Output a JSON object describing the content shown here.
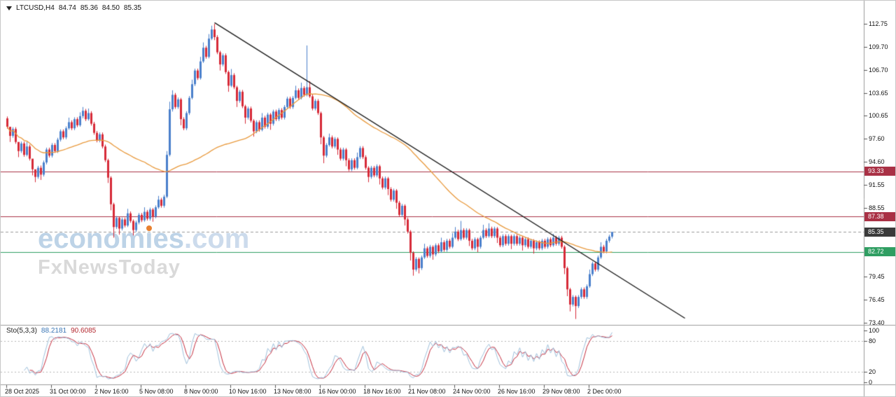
{
  "header": {
    "symbol": "LTCUSD,H4",
    "open": "84.74",
    "high": "85.36",
    "low": "84.50",
    "close": "85.35"
  },
  "watermark": {
    "brand_pre": "econom",
    "brand_i": "i",
    "brand_post": "es",
    "brand_suffix": ".com",
    "subbrand": "FxNewsToday"
  },
  "indicator_label": {
    "name": "Sto(5,3,3)",
    "k": "88.2181",
    "d": "90.6085"
  },
  "colors": {
    "up": "#4a7fcb",
    "down": "#d62937",
    "axis_text": "#111111",
    "separator": "#9b9b9b",
    "background": "#ffffff"
  },
  "chart_data": {
    "type": "candlestick",
    "symbol": "LTCUSD",
    "timeframe": "H4",
    "title": "LTCUSD,H4",
    "ylim": [
      73.4,
      112.75
    ],
    "y_axis": {
      "ticks": [
        112.75,
        109.7,
        106.7,
        103.65,
        100.65,
        97.6,
        94.6,
        91.55,
        88.55,
        79.45,
        76.45,
        73.4
      ],
      "badges": [
        {
          "text": "93.33",
          "price": 93.33,
          "bg": "#a93145"
        },
        {
          "text": "87.38",
          "price": 87.38,
          "bg": "#a93145"
        },
        {
          "text": "85.35",
          "price": 85.35,
          "bg": "#3a3a3a"
        },
        {
          "text": "82.72",
          "price": 82.72,
          "bg": "#2f9e62"
        }
      ]
    },
    "x_axis": {
      "labels": [
        {
          "text": "28 Oct 2025",
          "i": 0
        },
        {
          "text": "31 Oct 00:00",
          "i": 16
        },
        {
          "text": "2 Nov 16:00",
          "i": 32
        },
        {
          "text": "5 Nov 08:00",
          "i": 48
        },
        {
          "text": "8 Nov 00:00",
          "i": 64
        },
        {
          "text": "10 Nov 16:00",
          "i": 80
        },
        {
          "text": "13 Nov 08:00",
          "i": 96
        },
        {
          "text": "16 Nov 00:00",
          "i": 112
        },
        {
          "text": "18 Nov 16:00",
          "i": 128
        },
        {
          "text": "21 Nov 08:00",
          "i": 144
        },
        {
          "text": "24 Nov 00:00",
          "i": 160
        },
        {
          "text": "26 Nov 16:00",
          "i": 176
        },
        {
          "text": "29 Nov 08:00",
          "i": 192
        },
        {
          "text": "2 Dec 00:00",
          "i": 208
        }
      ]
    },
    "candle_format": "[open, close] or [open, close, high, low]; missing wick = body +/- 0.25",
    "candles": [
      [
        100.3,
        99.2
      ],
      [
        99.2,
        98,
        98.4,
        97.2
      ],
      [
        98,
        98.9
      ],
      [
        98.9,
        97.2
      ],
      [
        97.2,
        96,
        96.4,
        95.2
      ],
      [
        96,
        97
      ],
      [
        97,
        95.5
      ],
      [
        95.5,
        96.6,
        97.2,
        95.3
      ],
      [
        96.6,
        95
      ],
      [
        95,
        93.6,
        93.9,
        92.8
      ],
      [
        93.6,
        92.6,
        93,
        91.9
      ],
      [
        92.6,
        93.8
      ],
      [
        93.8,
        92.9,
        94.1,
        92.2
      ],
      [
        92.9,
        94.5
      ],
      [
        94.5,
        96.2
      ],
      [
        96.2,
        95.4
      ],
      [
        95.4,
        96.8
      ],
      [
        96.8,
        96
      ],
      [
        96,
        97.5
      ],
      [
        97.5,
        98.6
      ],
      [
        98.6,
        97.8
      ],
      [
        97.8,
        99
      ],
      [
        99,
        99.8,
        100.4,
        98.8
      ],
      [
        99.8,
        99
      ],
      [
        99,
        100.2
      ],
      [
        100.2,
        99.4
      ],
      [
        99.4,
        100.6,
        101.1,
        99.2
      ],
      [
        100.6,
        101.3,
        101.8,
        100.3
      ],
      [
        101.3,
        100.2
      ],
      [
        100.2,
        101,
        101.6,
        100
      ],
      [
        101,
        99.6
      ],
      [
        99.6,
        98.4
      ],
      [
        98.4,
        97.4
      ],
      [
        97.4,
        98.2
      ],
      [
        98.2,
        96.6
      ],
      [
        96.6,
        94.8
      ],
      [
        94.8,
        92.5,
        95,
        91.8
      ],
      [
        92.5,
        89,
        92.7,
        88.2
      ],
      [
        89,
        86,
        89.2,
        84.6
      ],
      [
        86,
        87.2
      ],
      [
        87.2,
        85.8,
        87.4,
        85
      ],
      [
        85.8,
        87
      ],
      [
        87,
        86.2
      ],
      [
        86.2,
        87.8,
        88.4,
        86
      ],
      [
        87.8,
        86.8
      ],
      [
        86.8,
        85.6,
        87,
        84.9
      ],
      [
        85.6,
        86.6
      ],
      [
        86.6,
        87.6
      ],
      [
        87.6,
        86.9
      ],
      [
        86.9,
        88,
        88.6,
        86.7
      ],
      [
        88,
        87.1
      ],
      [
        87.1,
        88.3
      ],
      [
        88.3,
        87.4,
        88.5,
        86.7
      ],
      [
        87.4,
        88.6
      ],
      [
        88.6,
        89.6,
        90.1,
        88.4
      ],
      [
        89.6,
        88.8
      ],
      [
        88.8,
        90
      ],
      [
        90,
        95.5,
        96,
        89.8
      ],
      [
        95.5,
        101.5,
        102.5,
        95.3
      ],
      [
        101.5,
        103.4,
        104,
        101.2
      ],
      [
        103.4,
        101.8
      ],
      [
        101.8,
        102.8
      ],
      [
        102.8,
        100.2,
        103,
        99.4
      ],
      [
        100.2,
        99
      ],
      [
        99,
        101
      ],
      [
        101,
        103
      ],
      [
        103,
        104.8,
        105.4,
        102.8
      ],
      [
        104.8,
        106.6
      ],
      [
        106.6,
        105.6
      ],
      [
        105.6,
        107.8,
        108.4,
        105.4
      ],
      [
        107.8,
        109.6,
        110.3,
        107.6
      ],
      [
        109.6,
        108.4
      ],
      [
        108.4,
        110.8,
        111.4,
        108.2
      ],
      [
        110.8,
        112,
        112.5,
        110.6
      ],
      [
        112,
        111,
        112.75,
        110.6
      ],
      [
        111,
        109
      ],
      [
        109,
        107.4,
        109.2,
        106.6
      ],
      [
        107.4,
        108.6
      ],
      [
        108.6,
        106.4
      ],
      [
        106.4,
        104.6,
        106.6,
        103.8
      ],
      [
        104.6,
        106,
        106.8,
        104.4
      ],
      [
        106,
        104.4
      ],
      [
        104.4,
        102.6,
        104.6,
        101.8
      ],
      [
        102.6,
        103.8
      ],
      [
        103.8,
        101.9
      ],
      [
        101.9,
        100.4,
        102.1,
        99.6
      ],
      [
        100.4,
        101.6
      ],
      [
        101.6,
        100
      ],
      [
        100,
        98.6,
        100.2,
        97.9
      ],
      [
        98.6,
        99.8
      ],
      [
        99.8,
        98.8
      ],
      [
        98.8,
        100.4,
        101,
        98.6
      ],
      [
        100.4,
        99.2
      ],
      [
        99.2,
        100.8
      ],
      [
        100.8,
        99.6,
        101,
        98.8
      ],
      [
        99.6,
        101.2
      ],
      [
        101.2,
        100.2
      ],
      [
        100.2,
        101.4
      ],
      [
        101.4,
        100.4
      ],
      [
        100.4,
        101.8
      ],
      [
        101.8,
        102.9
      ],
      [
        102.9,
        101.8
      ],
      [
        101.8,
        103
      ],
      [
        103,
        104,
        104.6,
        102.8
      ],
      [
        104,
        103
      ],
      [
        103,
        104.3,
        105,
        102.8
      ],
      [
        104.3,
        103.4
      ],
      [
        103.4,
        104.4,
        109.9,
        103.2
      ],
      [
        104.4,
        103.2,
        105.2,
        103
      ],
      [
        103.2,
        101.6
      ],
      [
        101.6,
        102.6
      ],
      [
        102.6,
        101
      ],
      [
        101,
        97.8,
        101.2,
        96.9
      ],
      [
        97.8,
        95.4,
        98,
        94.4
      ],
      [
        95.4,
        96.8
      ],
      [
        96.8,
        97.8,
        98.3,
        96.6
      ],
      [
        97.8,
        96.6
      ],
      [
        96.6,
        97.6
      ],
      [
        97.6,
        96.2,
        97.8,
        95.5
      ],
      [
        96.2,
        95
      ],
      [
        95,
        96.2
      ],
      [
        96.2,
        94.8,
        96.4,
        94
      ],
      [
        94.8,
        93.6
      ],
      [
        93.6,
        94.8
      ],
      [
        94.8,
        93.8
      ],
      [
        93.8,
        95.2,
        95.8,
        93.6
      ],
      [
        95.2,
        96.4
      ],
      [
        96.4,
        95.2
      ],
      [
        95.2,
        93.8
      ],
      [
        93.8,
        92.6,
        94,
        91.9
      ],
      [
        92.6,
        93.8
      ],
      [
        93.8,
        92.8
      ],
      [
        92.8,
        94
      ],
      [
        94,
        92.4,
        94.2,
        91.6
      ],
      [
        92.4,
        91.2
      ],
      [
        91.2,
        92.4
      ],
      [
        92.4,
        91,
        92.6,
        90.2
      ],
      [
        91,
        89.6
      ],
      [
        89.6,
        90.8
      ],
      [
        90.8,
        89.2,
        91,
        88.4
      ],
      [
        89.2,
        87.6
      ],
      [
        87.6,
        88.8
      ],
      [
        88.8,
        87,
        89,
        86.2
      ],
      [
        87,
        85.4
      ],
      [
        85.4,
        82.6,
        85.6,
        81.6
      ],
      [
        82.6,
        80.4,
        82.8,
        79.6
      ],
      [
        80.4,
        81.8
      ],
      [
        81.8,
        80.6,
        82,
        79.9
      ],
      [
        80.6,
        82
      ],
      [
        82,
        83.2,
        83.8,
        81.8
      ],
      [
        83.2,
        82.2
      ],
      [
        82.2,
        83.4
      ],
      [
        83.4,
        82.4,
        83.6,
        81.7
      ],
      [
        82.4,
        83.6
      ],
      [
        83.6,
        82.8
      ],
      [
        82.8,
        84,
        84.6,
        82.6
      ],
      [
        84,
        83
      ],
      [
        83,
        84.2
      ],
      [
        84.2,
        83.4
      ],
      [
        83.4,
        84.6,
        85.2,
        83.2
      ],
      [
        84.6,
        85.4,
        86,
        84.4
      ],
      [
        85.4,
        84.4
      ],
      [
        84.4,
        85.6,
        86.8,
        84.2
      ],
      [
        85.6,
        84.6
      ],
      [
        84.6,
        85.6
      ],
      [
        85.6,
        84.2,
        85.8,
        83.5
      ],
      [
        84.2,
        83.2
      ],
      [
        83.2,
        84.4
      ],
      [
        84.4,
        83.4,
        84.6,
        82.7
      ],
      [
        83.4,
        84.6
      ],
      [
        84.6,
        85.6,
        86.3,
        84.4
      ],
      [
        85.6,
        84.8
      ],
      [
        84.8,
        85.8,
        86.5,
        84.6
      ],
      [
        85.8,
        84.8
      ],
      [
        84.8,
        85.8
      ],
      [
        85.8,
        84.6,
        86,
        83.9
      ],
      [
        84.6,
        83.6
      ],
      [
        83.6,
        84.8
      ],
      [
        84.8,
        83.8
      ],
      [
        83.8,
        84.8
      ],
      [
        84.8,
        83.8,
        85,
        83.1
      ],
      [
        83.8,
        84.8
      ],
      [
        84.8,
        83.8
      ],
      [
        83.8,
        84.6
      ],
      [
        84.6,
        83.6,
        84.8,
        82.9
      ],
      [
        83.6,
        84.4
      ],
      [
        84.4,
        83.4
      ],
      [
        83.4,
        84.2
      ],
      [
        84.2,
        83.2,
        84.4,
        82.5
      ],
      [
        83.2,
        84
      ],
      [
        84,
        83.2
      ],
      [
        83.2,
        84.2
      ],
      [
        84.2,
        83.4
      ],
      [
        83.4,
        84.4
      ],
      [
        84.4,
        83.6
      ],
      [
        83.6,
        84.6,
        85.1,
        83.4
      ],
      [
        84.6,
        83.8
      ],
      [
        83.8,
        84.6
      ],
      [
        84.6,
        83.4
      ],
      [
        83.4,
        80.6,
        83.6,
        79.8
      ],
      [
        80.6,
        77.8,
        80.8,
        76.9
      ],
      [
        77.8,
        75.8,
        78,
        74.9
      ],
      [
        75.8,
        76.8
      ],
      [
        76.8,
        75.6,
        77,
        73.9
      ],
      [
        75.6,
        76.8
      ],
      [
        76.8,
        77.8
      ],
      [
        77.8,
        76.8
      ],
      [
        76.8,
        78.2
      ],
      [
        78.2,
        79.8,
        80.4,
        78
      ],
      [
        79.8,
        81.2
      ],
      [
        81.2,
        80.4
      ],
      [
        80.4,
        82
      ],
      [
        82,
        83.4,
        84,
        81.8
      ],
      [
        83.4,
        82.8
      ],
      [
        82.8,
        84.2
      ],
      [
        84.2,
        84.74
      ],
      [
        84.74,
        85.35,
        85.36,
        84.5
      ]
    ],
    "overlays": {
      "ma": {
        "type": "sma",
        "period": 50,
        "color": "#e8993c"
      },
      "trendline": {
        "from_index": 74,
        "from_price": 112.9,
        "to_index": 242,
        "to_price": 74.0,
        "color": "#1a1a1a"
      },
      "hlines": [
        {
          "price": 93.33,
          "color": "#a93145",
          "style": "solid"
        },
        {
          "price": 87.38,
          "color": "#a93145",
          "style": "solid"
        },
        {
          "price": 85.35,
          "color": "#999999",
          "style": "dashed"
        },
        {
          "price": 82.72,
          "color": "#2f9e62",
          "style": "solid"
        }
      ]
    },
    "indicator": {
      "type": "stochastic",
      "name": "Sto(5,3,3)",
      "k_period": 5,
      "slowing": 3,
      "d_period": 3,
      "current_k": 88.2181,
      "current_d": 90.6085,
      "range": [
        0,
        100
      ],
      "levels": [
        100,
        80,
        20,
        0
      ],
      "dotted_levels": [
        80,
        20
      ],
      "k_color": "#9dbfda",
      "d_color": "#c32b3c"
    }
  }
}
